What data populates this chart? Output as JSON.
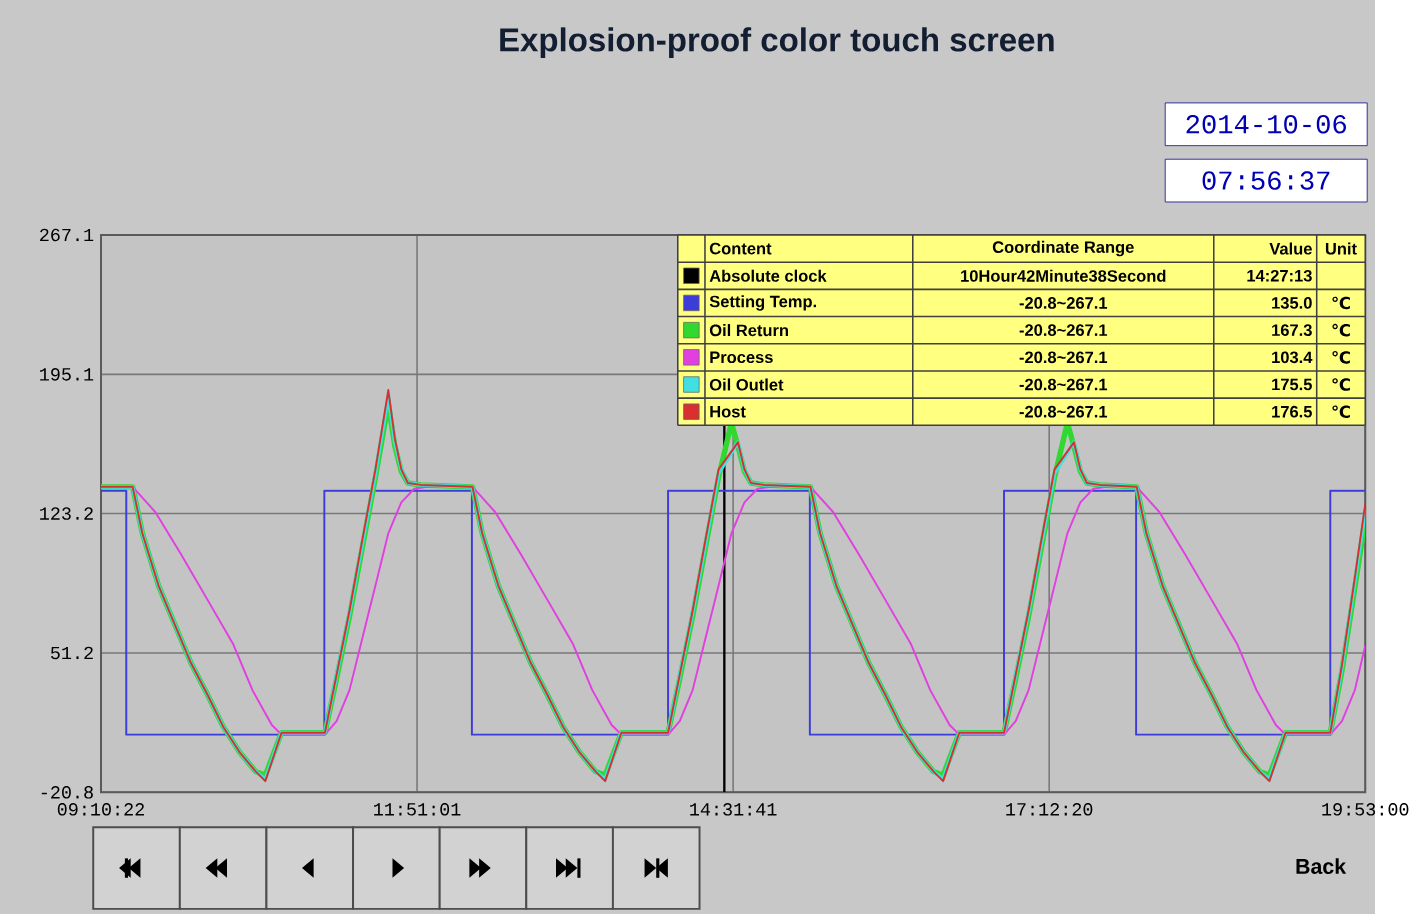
{
  "chart_data": {
    "type": "line",
    "title": "Explosion-proof color touch screen",
    "xlim": [
      9.1728,
      19.8833
    ],
    "ylim": [
      -20.8,
      267.1
    ],
    "xticks": [
      {
        "value": 9.1728,
        "label": "09:10:22"
      },
      {
        "value": 11.8503,
        "label": "11:51:01"
      },
      {
        "value": 14.5281,
        "label": "14:31:41"
      },
      {
        "value": 17.2056,
        "label": "17:12:20"
      },
      {
        "value": 19.8833,
        "label": "19:53:00"
      }
    ],
    "yticks": [
      -20.8,
      51.2,
      123.2,
      195.1,
      267.1
    ],
    "grid": true,
    "legend": "top right",
    "ref_lines": [
      {
        "axis": "x",
        "value": 14.4536,
        "color": "#000000"
      }
    ],
    "annotations": [
      "2014-10-06",
      "07:56:37",
      "Content",
      "Coordinate Range",
      "Value",
      "Unit",
      "Absolute clock",
      "10Hour42Minute38Second",
      "14:27:13",
      "-20.8~267.1",
      "-20.8~267.1",
      "-20.8~267.1",
      "-20.8~267.1",
      "-20.8~267.1",
      "135.0",
      "167.3",
      "103.4",
      "175.5",
      "176.5",
      "℃",
      "℃",
      "℃",
      "℃",
      "℃",
      "Back"
    ],
    "series": [
      {
        "name": "Setting Temp.",
        "type": "step",
        "color": "#3c3cd8",
        "x": [
          9.173,
          9.387,
          11.065,
          12.315,
          13.977,
          15.178,
          16.823,
          17.942,
          19.587,
          19.883
        ],
        "values": [
          135,
          9,
          135,
          9,
          135,
          9,
          135,
          9,
          135,
          135
        ]
      },
      {
        "name": "Oil Return",
        "color": "#30d830",
        "x": [
          9.173,
          9.441,
          9.523,
          9.66,
          9.797,
          9.935,
          10.072,
          10.209,
          10.346,
          10.483,
          10.565,
          10.702,
          11.07,
          11.169,
          11.278,
          11.388,
          11.498,
          11.607,
          11.662,
          11.717,
          11.772,
          11.882,
          12.32,
          12.402,
          12.539,
          12.676,
          12.814,
          12.951,
          13.088,
          13.225,
          13.362,
          13.444,
          13.581,
          13.977,
          14.076,
          14.185,
          14.295,
          14.405,
          14.514,
          14.569,
          14.624,
          14.679,
          14.789,
          15.183,
          15.265,
          15.402,
          15.539,
          15.677,
          15.814,
          15.951,
          16.088,
          16.225,
          16.307,
          16.444,
          16.823,
          16.922,
          17.031,
          17.141,
          17.251,
          17.36,
          17.415,
          17.47,
          17.525,
          17.635,
          17.947,
          18.029,
          18.166,
          18.303,
          18.441,
          18.578,
          18.715,
          18.852,
          18.989,
          19.071,
          19.208,
          19.587,
          19.686,
          19.795,
          19.883
        ],
        "values": [
          137,
          137,
          113,
          86,
          66,
          46,
          30,
          13,
          0,
          -10,
          -12,
          10,
          10,
          38,
          70,
          106,
          142,
          180,
          158,
          145,
          139,
          138,
          137,
          113,
          86,
          66,
          46,
          30,
          13,
          0,
          -10,
          -12,
          10,
          10,
          38,
          70,
          106,
          142,
          170,
          158,
          145,
          139,
          138,
          137,
          113,
          86,
          66,
          46,
          30,
          13,
          0,
          -10,
          -12,
          10,
          10,
          38,
          70,
          106,
          142,
          170,
          158,
          145,
          139,
          138,
          137,
          113,
          86,
          66,
          46,
          30,
          13,
          0,
          -10,
          -12,
          10,
          10,
          42,
          85,
          120
        ]
      },
      {
        "name": "Process",
        "color": "#e040e0",
        "x": [
          9.173,
          9.441,
          9.633,
          9.852,
          10.072,
          10.291,
          10.456,
          10.62,
          10.702,
          11.07,
          11.169,
          11.278,
          11.388,
          11.498,
          11.607,
          11.717,
          11.827,
          11.936,
          12.32,
          12.512,
          12.731,
          12.951,
          13.17,
          13.335,
          13.499,
          13.581,
          13.977,
          14.076,
          14.185,
          14.295,
          14.405,
          14.514,
          14.624,
          14.734,
          14.843,
          15.183,
          15.375,
          15.594,
          15.814,
          16.033,
          16.198,
          16.362,
          16.444,
          16.823,
          16.922,
          17.031,
          17.141,
          17.251,
          17.36,
          17.47,
          17.58,
          17.689,
          17.947,
          18.139,
          18.358,
          18.578,
          18.797,
          18.962,
          19.126,
          19.208,
          19.587,
          19.686,
          19.795,
          19.883
        ],
        "values": [
          137,
          137,
          124,
          102,
          79,
          56,
          32,
          14,
          9,
          9,
          16,
          32,
          59,
          86,
          113,
          129,
          136,
          137,
          137,
          124,
          102,
          79,
          56,
          32,
          14,
          9,
          9,
          16,
          32,
          59,
          86,
          113,
          129,
          136,
          137,
          137,
          124,
          102,
          79,
          56,
          32,
          14,
          9,
          9,
          16,
          32,
          59,
          86,
          113,
          129,
          136,
          137,
          137,
          124,
          102,
          79,
          56,
          32,
          14,
          9,
          9,
          16,
          32,
          55
        ]
      },
      {
        "name": "Oil Outlet",
        "color": "#40e0e0",
        "x": [
          9.173,
          9.441,
          9.523,
          9.66,
          9.797,
          9.935,
          10.072,
          10.209,
          10.346,
          10.483,
          10.565,
          10.702,
          11.07,
          11.169,
          11.278,
          11.388,
          11.498,
          11.607,
          11.662,
          11.717,
          11.772,
          11.882,
          12.32,
          12.402,
          12.539,
          12.676,
          12.814,
          12.951,
          13.088,
          13.225,
          13.362,
          13.444,
          13.581,
          13.977,
          14.076,
          14.185,
          14.295,
          14.405,
          14.514,
          14.569,
          14.624,
          14.679,
          14.789,
          15.183,
          15.265,
          15.402,
          15.539,
          15.677,
          15.814,
          15.951,
          16.088,
          16.225,
          16.307,
          16.444,
          16.823,
          16.922,
          17.031,
          17.141,
          17.251,
          17.36,
          17.415,
          17.47,
          17.525,
          17.635,
          17.947,
          18.029,
          18.166,
          18.303,
          18.441,
          18.578,
          18.715,
          18.852,
          18.989,
          19.071,
          19.208,
          19.587,
          19.686,
          19.795,
          19.883
        ],
        "values": [
          137,
          137,
          113,
          86,
          66,
          46,
          30,
          13,
          0,
          -10,
          -14,
          10,
          10,
          40,
          72,
          108,
          144,
          184,
          160,
          146,
          139,
          138,
          137,
          113,
          86,
          66,
          46,
          30,
          13,
          0,
          -10,
          -14,
          10,
          10,
          40,
          72,
          108,
          144,
          null,
          160,
          146,
          139,
          138,
          137,
          113,
          86,
          66,
          46,
          30,
          13,
          0,
          -10,
          -14,
          10,
          10,
          40,
          72,
          108,
          144,
          null,
          160,
          146,
          139,
          138,
          137,
          113,
          86,
          66,
          46,
          30,
          13,
          0,
          -10,
          -14,
          10,
          10,
          44,
          88,
          125
        ]
      },
      {
        "name": "Host",
        "color": "#d83030",
        "x": [
          9.173,
          9.441,
          9.523,
          9.66,
          9.797,
          9.935,
          10.072,
          10.209,
          10.346,
          10.483,
          10.565,
          10.702,
          11.07,
          11.169,
          11.278,
          11.388,
          11.498,
          11.607,
          11.662,
          11.717,
          11.772,
          11.882,
          12.32,
          12.402,
          12.539,
          12.676,
          12.814,
          12.951,
          13.088,
          13.225,
          13.362,
          13.444,
          13.581,
          13.977,
          14.076,
          14.185,
          14.295,
          14.405,
          14.514,
          14.569,
          14.624,
          14.679,
          14.789,
          15.183,
          15.265,
          15.402,
          15.539,
          15.677,
          15.814,
          15.951,
          16.088,
          16.225,
          16.307,
          16.444,
          16.823,
          16.922,
          17.031,
          17.141,
          17.251,
          17.36,
          17.415,
          17.47,
          17.525,
          17.635,
          17.947,
          18.029,
          18.166,
          18.303,
          18.441,
          18.578,
          18.715,
          18.852,
          18.989,
          19.071,
          19.208,
          19.587,
          19.686,
          19.795,
          19.883
        ],
        "values": [
          137,
          137,
          113,
          86,
          66,
          46,
          30,
          13,
          0,
          -10,
          -15,
          10,
          10,
          40,
          73,
          110,
          146,
          187,
          162,
          146,
          139,
          138,
          137,
          113,
          86,
          66,
          46,
          30,
          13,
          0,
          -10,
          -15,
          10,
          10,
          40,
          73,
          110,
          146,
          null,
          160,
          146,
          139,
          138,
          137,
          113,
          86,
          66,
          46,
          30,
          13,
          0,
          -10,
          -15,
          10,
          10,
          40,
          73,
          110,
          146,
          null,
          160,
          146,
          139,
          138,
          137,
          113,
          86,
          66,
          46,
          30,
          13,
          0,
          -10,
          -15,
          10,
          10,
          45,
          90,
          128
        ]
      }
    ]
  }
}
